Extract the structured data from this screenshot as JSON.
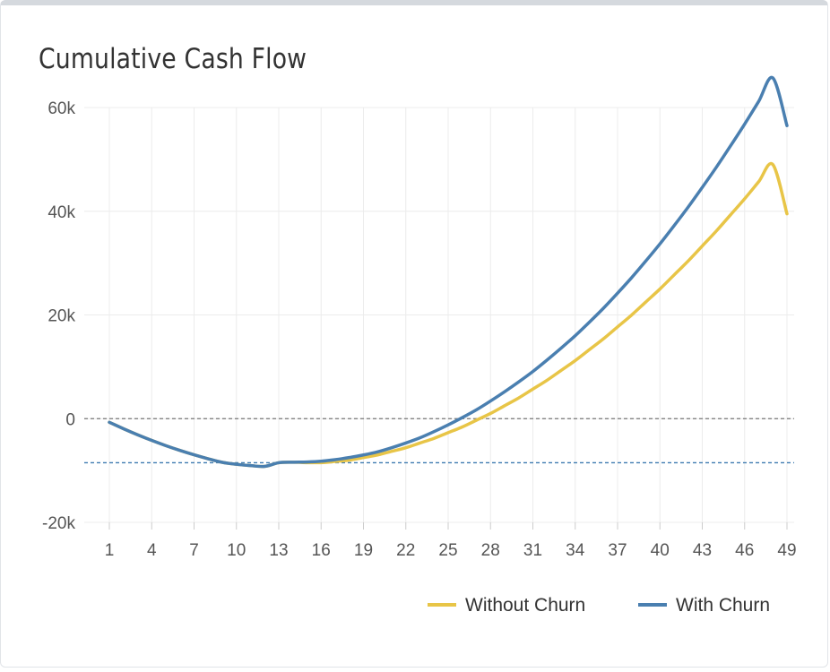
{
  "chart_data": {
    "type": "line",
    "title": "Cumulative Cash Flow",
    "x": [
      1,
      2,
      3,
      4,
      5,
      6,
      7,
      8,
      9,
      10,
      11,
      12,
      13,
      14,
      15,
      16,
      17,
      18,
      19,
      20,
      21,
      22,
      23,
      24,
      25,
      26,
      27,
      28,
      29,
      30,
      31,
      32,
      33,
      34,
      35,
      36,
      37,
      38,
      39,
      40,
      41,
      42,
      43,
      44,
      45,
      46,
      47,
      48,
      49
    ],
    "x_ticks": [
      "1",
      "4",
      "7",
      "10",
      "13",
      "16",
      "19",
      "22",
      "25",
      "28",
      "31",
      "34",
      "37",
      "40",
      "43",
      "46",
      "49"
    ],
    "ylim": [
      -20000,
      60000
    ],
    "y_ticks": [
      -20000,
      0,
      20000,
      40000,
      60000
    ],
    "y_tick_labels": [
      "-20k",
      "0",
      "20k",
      "40k",
      "60k"
    ],
    "grid": true,
    "legend_position": "bottom-right",
    "reference_lines": [
      {
        "y": 0,
        "color": "#777777",
        "style": "dashed"
      },
      {
        "y": -8500,
        "color": "#3f7bb0",
        "style": "dashed"
      }
    ],
    "series": [
      {
        "name": "Without Churn",
        "color": "#e8c547",
        "values": [
          -700,
          -1945,
          -3110,
          -4195,
          -5200,
          -6125,
          -6970,
          -7735,
          -8420,
          -8800,
          -9050,
          -9200,
          -8500,
          -8400,
          -8480,
          -8480,
          -8250,
          -8000,
          -7500,
          -7000,
          -6300,
          -5600,
          -4700,
          -3800,
          -2700,
          -1600,
          -300,
          1000,
          2500,
          4000,
          5700,
          7400,
          9300,
          11200,
          13300,
          15400,
          17700,
          20000,
          22500,
          25000,
          27700,
          30400,
          33300,
          36200,
          39300,
          42400,
          45700,
          49000,
          39500
        ]
      },
      {
        "name": "With Churn",
        "color": "#4a7fb0",
        "values": [
          -700,
          -1945,
          -3110,
          -4195,
          -5200,
          -6125,
          -6970,
          -7735,
          -8420,
          -8800,
          -9050,
          -9200,
          -8500,
          -8400,
          -8350,
          -8200,
          -7900,
          -7500,
          -7000,
          -6400,
          -5600,
          -4700,
          -3700,
          -2500,
          -1200,
          200,
          1700,
          3400,
          5200,
          7100,
          9100,
          11300,
          13600,
          16000,
          18600,
          21300,
          24200,
          27200,
          30400,
          33700,
          37200,
          40800,
          44600,
          48500,
          52600,
          56800,
          61200,
          65700,
          56500
        ]
      }
    ]
  }
}
